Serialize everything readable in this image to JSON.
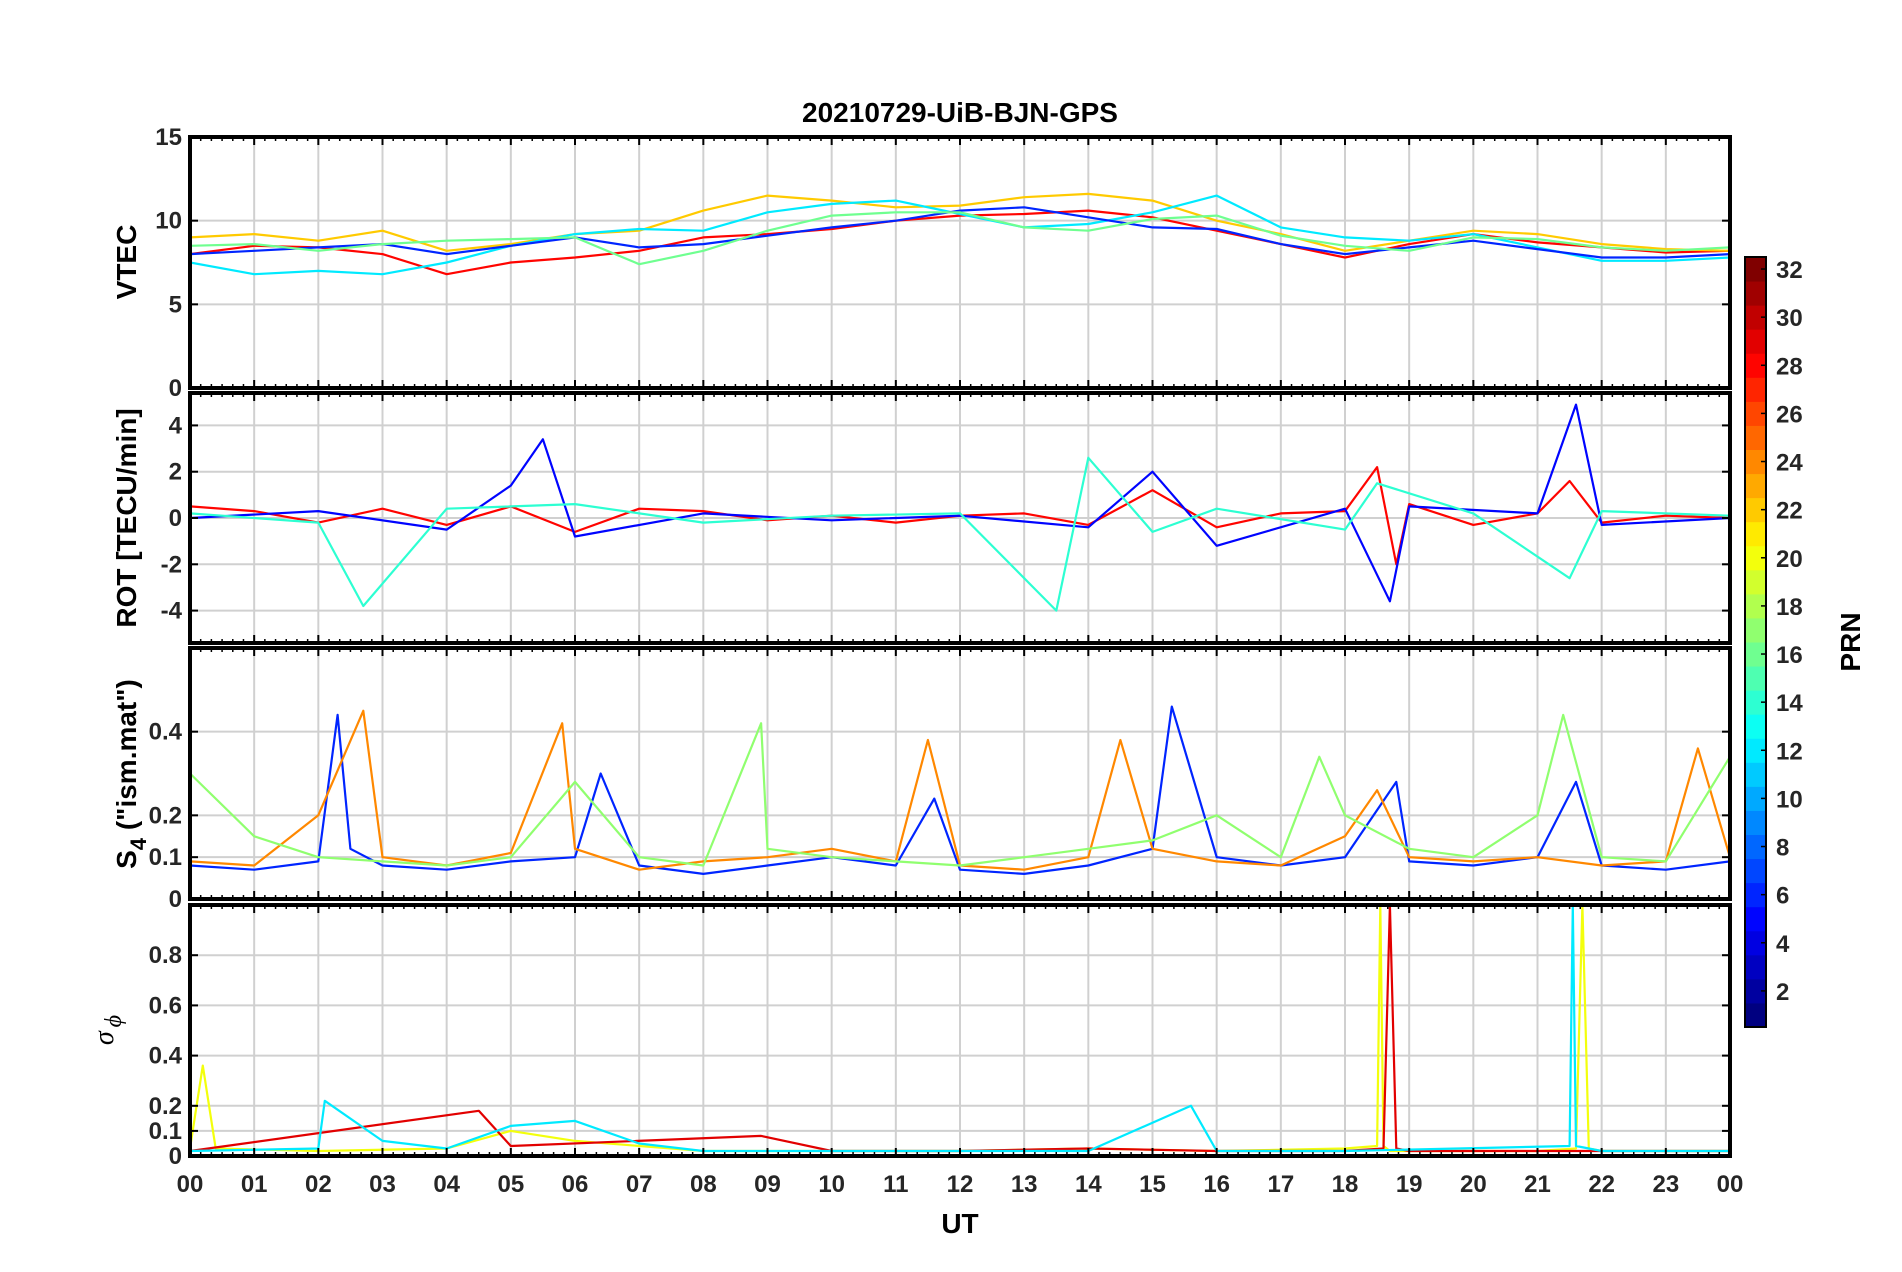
{
  "chart_data": {
    "title": "20210729-UiB-BJN-GPS",
    "type": "line",
    "x_axis": {
      "label": "UT",
      "range": [
        0,
        24
      ],
      "tick_labels": [
        "00",
        "01",
        "02",
        "03",
        "04",
        "05",
        "06",
        "07",
        "08",
        "09",
        "10",
        "11",
        "12",
        "13",
        "14",
        "15",
        "16",
        "17",
        "18",
        "19",
        "20",
        "21",
        "22",
        "23",
        "00"
      ]
    },
    "colorbar": {
      "label": "PRN",
      "range": [
        1,
        32
      ],
      "tick_labels": [
        "2",
        "4",
        "6",
        "8",
        "10",
        "12",
        "14",
        "16",
        "18",
        "20",
        "22",
        "24",
        "26",
        "28",
        "30",
        "32"
      ],
      "colormap": "jet"
    },
    "grid": true,
    "panels": [
      {
        "id": "vtec",
        "ylabel": "VTEC",
        "ylim": [
          0,
          15
        ],
        "y_ticks": [
          0,
          5,
          10,
          15
        ],
        "y_tick_labels": [
          "0",
          "5",
          "10",
          "15"
        ],
        "series": [
          {
            "prn": 28,
            "x": [
              0,
              1,
              2,
              3,
              4,
              5,
              6,
              7,
              8,
              9,
              10,
              11,
              12,
              13,
              14,
              15,
              16,
              17,
              18,
              19,
              20,
              21,
              22,
              23,
              24
            ],
            "y": [
              8,
              8.5,
              8.4,
              8,
              6.8,
              7.5,
              7.8,
              8.2,
              9,
              9.2,
              9.5,
              10,
              10.3,
              10.4,
              10.6,
              10.2,
              9.4,
              8.6,
              7.8,
              8.6,
              9.2,
              8.7,
              8.4,
              8.1,
              8.2
            ]
          },
          {
            "prn": 22,
            "x": [
              0,
              1,
              2,
              3,
              4,
              5,
              6,
              7,
              8,
              9,
              10,
              11,
              12,
              13,
              14,
              15,
              16,
              17,
              18,
              19,
              20,
              21,
              22,
              23,
              24
            ],
            "y": [
              9,
              9.2,
              8.8,
              9.4,
              8.2,
              8.6,
              9.2,
              9.4,
              10.6,
              11.5,
              11.2,
              10.8,
              10.9,
              11.4,
              11.6,
              11.2,
              10,
              9.2,
              8.2,
              8.8,
              9.4,
              9.2,
              8.6,
              8.3,
              8.2
            ]
          },
          {
            "prn": 12,
            "x": [
              0,
              1,
              2,
              3,
              4,
              5,
              6,
              7,
              8,
              9,
              10,
              11,
              12,
              13,
              14,
              15,
              16,
              17,
              18,
              19,
              20,
              21,
              22,
              23,
              24
            ],
            "y": [
              7.5,
              6.8,
              7,
              6.8,
              7.5,
              8.5,
              9.2,
              9.5,
              9.4,
              10.5,
              11,
              11.2,
              10.4,
              9.6,
              9.8,
              10.5,
              11.5,
              9.6,
              9,
              8.8,
              9.2,
              8.4,
              7.6,
              7.6,
              7.8
            ]
          },
          {
            "prn": 6,
            "x": [
              0,
              1,
              2,
              3,
              4,
              5,
              6,
              7,
              8,
              9,
              10,
              11,
              12,
              13,
              14,
              15,
              16,
              17,
              18,
              19,
              20,
              21,
              22,
              23,
              24
            ],
            "y": [
              8,
              8.2,
              8.4,
              8.6,
              8,
              8.5,
              9,
              8.4,
              8.6,
              9.1,
              9.6,
              10,
              10.6,
              10.8,
              10.2,
              9.6,
              9.5,
              8.6,
              8,
              8.4,
              8.8,
              8.3,
              7.8,
              7.8,
              8
            ]
          },
          {
            "prn": 16,
            "x": [
              0,
              1,
              2,
              3,
              4,
              5,
              6,
              7,
              8,
              9,
              10,
              11,
              12,
              13,
              14,
              15,
              16,
              17,
              18,
              19,
              20,
              21,
              22,
              23,
              24
            ],
            "y": [
              8.5,
              8.6,
              8.2,
              8.6,
              8.8,
              8.9,
              9,
              7.4,
              8.2,
              9.4,
              10.3,
              10.5,
              10.5,
              9.6,
              9.4,
              10.1,
              10.3,
              9.1,
              8.5,
              8.2,
              9,
              8.9,
              8.4,
              8.2,
              8.4
            ]
          }
        ]
      },
      {
        "id": "rot",
        "ylabel": "ROT [TECU/min]",
        "ylim": [
          -5.4,
          5.4
        ],
        "y_ticks": [
          -4,
          -2,
          0,
          2,
          4
        ],
        "y_tick_labels": [
          "-4",
          "-2",
          "0",
          "2",
          "4"
        ],
        "series": [
          {
            "prn": 28,
            "x": [
              0,
              1,
              2,
              3,
              4,
              5,
              6,
              7,
              8,
              9,
              10,
              11,
              12,
              13,
              14,
              15,
              16,
              17,
              18,
              18.5,
              18.8,
              19,
              20,
              21,
              21.5,
              22,
              23,
              24
            ],
            "y": [
              0.5,
              0.3,
              -0.2,
              0.4,
              -0.3,
              0.5,
              -0.6,
              0.4,
              0.3,
              -0.1,
              0.1,
              -0.2,
              0.1,
              0.2,
              -0.3,
              1.2,
              -0.4,
              0.2,
              0.3,
              2.2,
              -2,
              0.6,
              -0.3,
              0.2,
              1.6,
              -0.2,
              0.1,
              0
            ]
          },
          {
            "prn": 5,
            "x": [
              0,
              2,
              4,
              5,
              5.5,
              6,
              8,
              10,
              12,
              14,
              15,
              16,
              18,
              18.7,
              19,
              21,
              21.6,
              22,
              24
            ],
            "y": [
              0,
              0.3,
              -0.5,
              1.4,
              3.4,
              -0.8,
              0.2,
              -0.1,
              0.1,
              -0.4,
              2,
              -1.2,
              0.4,
              -3.6,
              0.5,
              0.2,
              4.9,
              -0.3,
              0
            ]
          },
          {
            "prn": 14,
            "x": [
              0,
              2,
              2.7,
              4,
              6,
              8,
              10,
              12,
              13.5,
              14,
              15,
              16,
              18,
              18.5,
              20,
              21.5,
              22,
              24
            ],
            "y": [
              0.2,
              -0.2,
              -3.8,
              0.4,
              0.6,
              -0.2,
              0.1,
              0.2,
              -4,
              2.6,
              -0.6,
              0.4,
              -0.5,
              1.5,
              0.2,
              -2.6,
              0.3,
              0.1
            ]
          }
        ]
      },
      {
        "id": "s4",
        "ylabel": "S",
        "ylabel_subscript": "4",
        "ylabel_suffix": " (\"ism.mat\")",
        "ylim": [
          0,
          0.6
        ],
        "y_ticks": [
          0,
          0.1,
          0.2,
          0.4
        ],
        "y_tick_labels": [
          "0",
          "0.1",
          "0.2",
          "0.4"
        ],
        "series": [
          {
            "prn": 6,
            "x": [
              0,
              1,
              2,
              2.3,
              2.5,
              3,
              4,
              5,
              6,
              6.4,
              7,
              8,
              9,
              10,
              11,
              11.6,
              12,
              13,
              14,
              15,
              15.3,
              16,
              17,
              18,
              18.8,
              19,
              20,
              21,
              21.6,
              22,
              23,
              24
            ],
            "y": [
              0.08,
              0.07,
              0.09,
              0.44,
              0.12,
              0.08,
              0.07,
              0.09,
              0.1,
              0.3,
              0.08,
              0.06,
              0.08,
              0.1,
              0.08,
              0.24,
              0.07,
              0.06,
              0.08,
              0.12,
              0.46,
              0.1,
              0.08,
              0.1,
              0.28,
              0.09,
              0.08,
              0.1,
              0.28,
              0.08,
              0.07,
              0.09
            ]
          },
          {
            "prn": 24,
            "x": [
              0,
              1,
              2,
              2.7,
              3,
              4,
              5,
              5.8,
              6,
              7,
              8,
              9,
              10,
              11,
              11.5,
              12,
              13,
              14,
              14.5,
              15,
              16,
              17,
              18,
              18.5,
              19,
              20,
              21,
              22,
              23,
              23.5,
              24
            ],
            "y": [
              0.09,
              0.08,
              0.2,
              0.45,
              0.1,
              0.08,
              0.11,
              0.42,
              0.12,
              0.07,
              0.09,
              0.1,
              0.12,
              0.09,
              0.38,
              0.08,
              0.07,
              0.1,
              0.38,
              0.12,
              0.09,
              0.08,
              0.15,
              0.26,
              0.1,
              0.09,
              0.1,
              0.08,
              0.09,
              0.36,
              0.1
            ]
          },
          {
            "prn": 17,
            "x": [
              0,
              1,
              2,
              3,
              4,
              5,
              6,
              7,
              8,
              8.9,
              9,
              10,
              11,
              12,
              13,
              14,
              15,
              16,
              17,
              17.6,
              18,
              19,
              20,
              21,
              21.4,
              22,
              23,
              24
            ],
            "y": [
              0.3,
              0.15,
              0.1,
              0.09,
              0.08,
              0.1,
              0.28,
              0.1,
              0.08,
              0.42,
              0.12,
              0.1,
              0.09,
              0.08,
              0.1,
              0.12,
              0.14,
              0.2,
              0.1,
              0.34,
              0.2,
              0.12,
              0.1,
              0.2,
              0.44,
              0.1,
              0.09,
              0.34
            ]
          }
        ]
      },
      {
        "id": "sigma_phi",
        "ylabel": "σ",
        "ylabel_subscript": "ϕ",
        "ylim": [
          0,
          1
        ],
        "y_ticks": [
          0,
          0.1,
          0.2,
          0.4,
          0.6,
          0.8
        ],
        "y_tick_labels": [
          "0",
          "0.1",
          "0.2",
          "0.4",
          "0.6",
          "0.8"
        ],
        "series": [
          {
            "prn": 20,
            "x": [
              0,
              0.2,
              0.4,
              2,
              4,
              5,
              6,
              8,
              10,
              12,
              14,
              16,
              18,
              18.5,
              18.55,
              18.6,
              18.7,
              19,
              21,
              21.6,
              21.7,
              21.8,
              22,
              24
            ],
            "y": [
              0.03,
              0.36,
              0.03,
              0.02,
              0.03,
              0.1,
              0.06,
              0.02,
              0.02,
              0.02,
              0.03,
              0.02,
              0.03,
              0.04,
              1,
              0.04,
              0.02,
              0.02,
              0.02,
              0.03,
              1,
              0.03,
              0.02,
              0.02
            ]
          },
          {
            "prn": 29,
            "x": [
              0,
              4.5,
              5,
              8.9,
              10,
              12,
              14,
              16,
              18,
              18.6,
              18.7,
              18.8,
              19,
              21,
              22,
              24
            ],
            "y": [
              0.02,
              0.18,
              0.04,
              0.08,
              0.02,
              0.02,
              0.03,
              0.02,
              0.02,
              0.03,
              1,
              0.03,
              0.02,
              0.02,
              0.02,
              0.02
            ]
          },
          {
            "prn": 12,
            "x": [
              0,
              2,
              2.1,
              3,
              4,
              5,
              6,
              7,
              8,
              10,
              12,
              14,
              15.6,
              16,
              18,
              21.5,
              21.55,
              21.6,
              22,
              24
            ],
            "y": [
              0.02,
              0.03,
              0.22,
              0.06,
              0.03,
              0.12,
              0.14,
              0.05,
              0.02,
              0.02,
              0.02,
              0.02,
              0.2,
              0.02,
              0.02,
              0.04,
              1,
              0.04,
              0.02,
              0.02
            ]
          }
        ]
      }
    ]
  }
}
